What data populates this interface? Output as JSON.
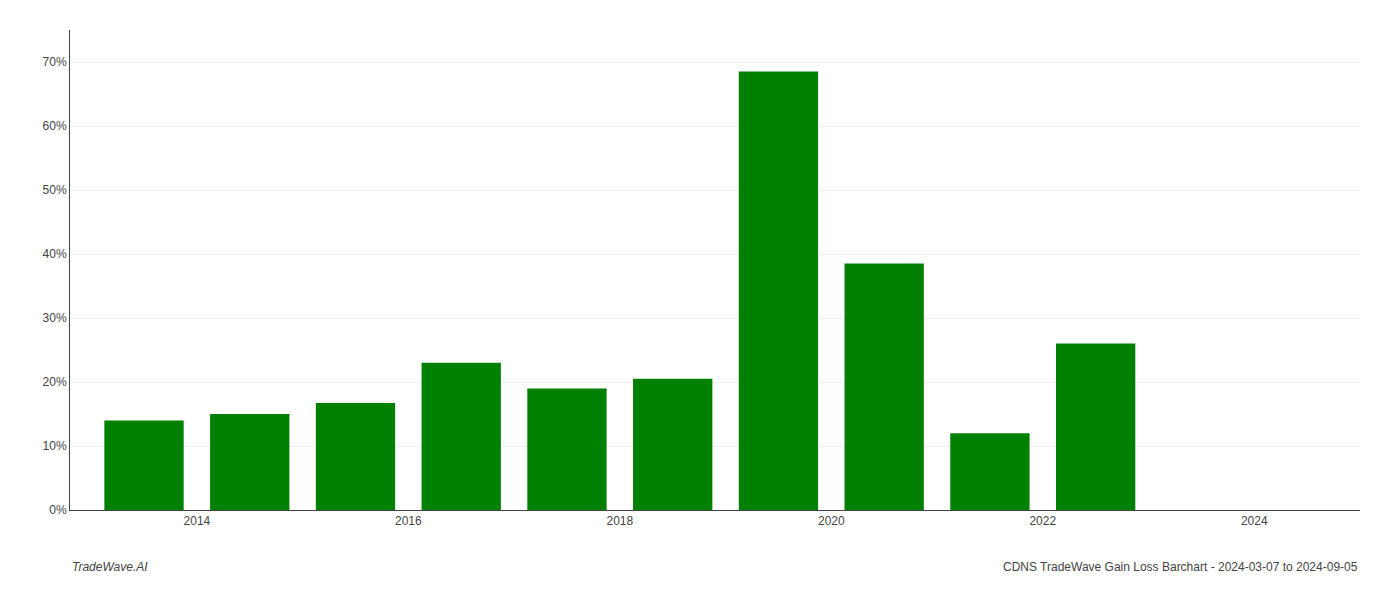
{
  "chart_data": {
    "type": "bar",
    "x": [
      2013,
      2014,
      2015,
      2016,
      2017,
      2018,
      2019,
      2020,
      2021,
      2022,
      2023
    ],
    "values": [
      0.14,
      0.15,
      0.167,
      0.23,
      0.19,
      0.205,
      0.685,
      0.385,
      0.12,
      0.26,
      0.0
    ],
    "color": "#008000",
    "xlim": [
      2012.3,
      2024.5
    ],
    "xticks": [
      {
        "value": 2013.5,
        "label": "2014"
      },
      {
        "value": 2015.5,
        "label": "2016"
      },
      {
        "value": 2017.5,
        "label": "2018"
      },
      {
        "value": 2019.5,
        "label": "2020"
      },
      {
        "value": 2021.5,
        "label": "2022"
      },
      {
        "value": 2023.5,
        "label": "2024"
      }
    ],
    "ylim": [
      0,
      0.75
    ],
    "yticks": [
      {
        "value": 0.0,
        "label": "0%"
      },
      {
        "value": 0.1,
        "label": "10%"
      },
      {
        "value": 0.2,
        "label": "20%"
      },
      {
        "value": 0.3,
        "label": "30%"
      },
      {
        "value": 0.4,
        "label": "40%"
      },
      {
        "value": 0.5,
        "label": "50%"
      },
      {
        "value": 0.6,
        "label": "60%"
      },
      {
        "value": 0.7,
        "label": "70%"
      }
    ],
    "grid": true,
    "annotations": [
      "TradeWave.AI",
      "CDNS TradeWave Gain Loss Barchart - 2024-03-07 to 2024-09-05"
    ]
  }
}
